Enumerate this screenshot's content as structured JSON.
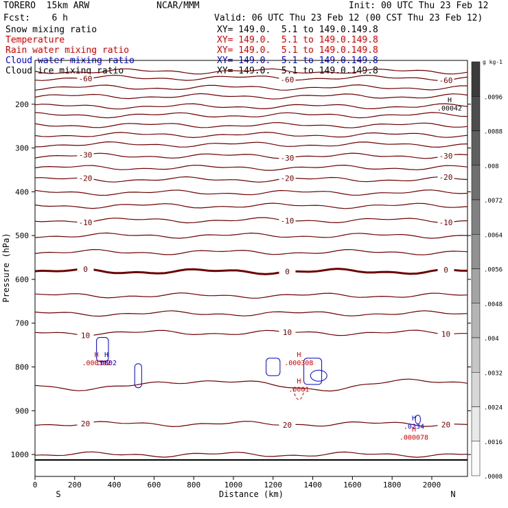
{
  "header": {
    "model": "TORERO  15km ARW",
    "center": "NCAR/MMM",
    "init": "Init: 00 UTC Thu 23 Feb 12",
    "fcst": "Fcst:    6 h",
    "valid": "Valid: 06 UTC Thu 23 Feb 12 (00 CST Thu 23 Feb 12)"
  },
  "fields": [
    {
      "name": "Snow mixing ratio",
      "xy": "XY= 149.0.  5.1 to 149.0.149.8",
      "color": "#000000"
    },
    {
      "name": "Temperature",
      "xy": "XY= 149.0.  5.1 to 149.0.149.8",
      "color": "#cc0000"
    },
    {
      "name": "Rain water mixing ratio",
      "xy": "XY= 149.0.  5.1 to 149.0.149.8",
      "color": "#cc0000"
    },
    {
      "name": "Cloud water mixing ratio",
      "xy": "XY= 149.0.  5.1 to 149.0.149.8",
      "color": "#0000cc"
    },
    {
      "name": "Cloud ice mixing ratio",
      "xy": "XY= 149.0.  5.1 to 149.0.149.8",
      "color": "#000000"
    }
  ],
  "chart_data": {
    "type": "contour",
    "xlabel": "Distance (km)",
    "ylabel": "Pressure (hPa)",
    "xlim": [
      0,
      2180
    ],
    "ylim": [
      1050,
      100
    ],
    "x_ticks": [
      0,
      200,
      400,
      600,
      800,
      1000,
      1200,
      1400,
      1600,
      1800,
      2000
    ],
    "y_ticks": [
      200,
      300,
      400,
      500,
      600,
      700,
      800,
      900,
      1000
    ],
    "left_end_label": "S",
    "right_end_label": "N",
    "temperature_contours": [
      {
        "p": 125,
        "label": ""
      },
      {
        "p": 140,
        "label": "-60"
      },
      {
        "p": 162,
        "label": ""
      },
      {
        "p": 182,
        "label": ""
      },
      {
        "p": 205,
        "label": ""
      },
      {
        "p": 225,
        "label": ""
      },
      {
        "p": 248,
        "label": ""
      },
      {
        "p": 270,
        "label": ""
      },
      {
        "p": 292,
        "label": ""
      },
      {
        "p": 318,
        "label": "-30"
      },
      {
        "p": 345,
        "label": ""
      },
      {
        "p": 372,
        "label": "-20"
      },
      {
        "p": 402,
        "label": ""
      },
      {
        "p": 432,
        "label": ""
      },
      {
        "p": 465,
        "label": "-10"
      },
      {
        "p": 500,
        "label": ""
      },
      {
        "p": 538,
        "label": ""
      },
      {
        "p": 582,
        "label": "0",
        "bold": true
      },
      {
        "p": 637,
        "label": ""
      },
      {
        "p": 678,
        "label": ""
      },
      {
        "p": 722,
        "label": "10"
      },
      {
        "p": 840,
        "label": ""
      },
      {
        "p": 930,
        "label": "20"
      },
      {
        "p": 1000,
        "label": ""
      }
    ],
    "colorbar": {
      "unit": "g kg-1",
      "labels": [
        ".0096",
        ".0088",
        ".008",
        ".0072",
        ".0064",
        ".0056",
        ".0048",
        ".004",
        ".0032",
        ".0024",
        ".0016",
        ".0008"
      ]
    },
    "extrema": [
      {
        "marker": "H",
        "value": ".00042",
        "color": "#000000",
        "x": 2090,
        "p": 208
      },
      {
        "marker": "H",
        "value": ".000392",
        "color": "#cc0000",
        "x": 310,
        "p": 790
      },
      {
        "marker": "H",
        "value": ".0002",
        "color": "#0000cc",
        "x": 360,
        "p": 790
      },
      {
        "marker": "H",
        "value": ".000308",
        "color": "#cc0000",
        "x": 1330,
        "p": 790
      },
      {
        "marker": "H",
        "value": ".0001",
        "color": "#cc0000",
        "x": 1330,
        "p": 850
      },
      {
        "marker": "H",
        "value": ".0234",
        "color": "#0000cc",
        "x": 1910,
        "p": 935
      },
      {
        "marker": "H",
        "value": ".000078",
        "color": "#cc0000",
        "x": 1910,
        "p": 960
      }
    ]
  }
}
